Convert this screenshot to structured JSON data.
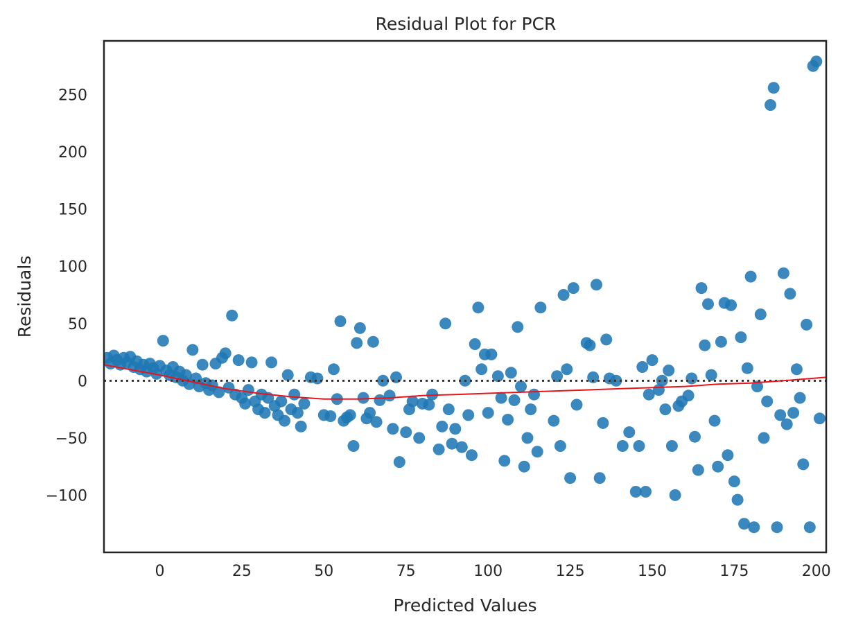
{
  "chart_data": {
    "type": "scatter",
    "title": "Residual Plot for PCR",
    "xlabel": "Predicted Values",
    "ylabel": "Residuals",
    "xlim": [
      -17,
      203
    ],
    "ylim": [
      -150,
      297
    ],
    "xticks": [
      0,
      25,
      50,
      75,
      100,
      125,
      150,
      175,
      200
    ],
    "yticks": [
      -100,
      -50,
      0,
      50,
      100,
      150,
      200,
      250
    ],
    "xtick_labels": [
      "0",
      "25",
      "50",
      "75",
      "100",
      "125",
      "150",
      "175",
      "200"
    ],
    "ytick_labels": [
      "−100",
      "−50",
      "0",
      "50",
      "100",
      "150",
      "200",
      "250"
    ],
    "grid": false,
    "point_color": "#1f77b4",
    "trend_color": "#e8141c",
    "reference_line": {
      "y": 0,
      "style": "dotted",
      "color": "#333333"
    },
    "series": [
      {
        "points": [
          [
            -16,
            20
          ],
          [
            -15,
            15
          ],
          [
            -14,
            22
          ],
          [
            -13,
            18
          ],
          [
            -12,
            14
          ],
          [
            -11,
            20
          ],
          [
            -10,
            16
          ],
          [
            -9,
            21
          ],
          [
            -8,
            12
          ],
          [
            -7,
            17
          ],
          [
            -6,
            10
          ],
          [
            -5,
            14
          ],
          [
            -4,
            8
          ],
          [
            -3,
            15
          ],
          [
            -2,
            11
          ],
          [
            -1,
            6
          ],
          [
            0,
            13
          ],
          [
            1,
            35
          ],
          [
            2,
            9
          ],
          [
            3,
            5
          ],
          [
            4,
            12
          ],
          [
            5,
            3
          ],
          [
            6,
            8
          ],
          [
            7,
            0
          ],
          [
            8,
            5
          ],
          [
            9,
            -3
          ],
          [
            10,
            27
          ],
          [
            11,
            2
          ],
          [
            12,
            -5
          ],
          [
            13,
            14
          ],
          [
            14,
            -2
          ],
          [
            15,
            -8
          ],
          [
            16,
            -4
          ],
          [
            17,
            15
          ],
          [
            18,
            -10
          ],
          [
            19,
            20
          ],
          [
            20,
            24
          ],
          [
            21,
            -6
          ],
          [
            22,
            57
          ],
          [
            23,
            -12
          ],
          [
            24,
            18
          ],
          [
            25,
            -15
          ],
          [
            26,
            -20
          ],
          [
            27,
            -8
          ],
          [
            28,
            16
          ],
          [
            29,
            -18
          ],
          [
            30,
            -25
          ],
          [
            31,
            -12
          ],
          [
            32,
            -28
          ],
          [
            33,
            -15
          ],
          [
            34,
            16
          ],
          [
            35,
            -22
          ],
          [
            36,
            -30
          ],
          [
            37,
            -18
          ],
          [
            38,
            -35
          ],
          [
            39,
            5
          ],
          [
            40,
            -25
          ],
          [
            41,
            -12
          ],
          [
            42,
            -28
          ],
          [
            43,
            -40
          ],
          [
            44,
            -20
          ],
          [
            46,
            3
          ],
          [
            48,
            2
          ],
          [
            50,
            -30
          ],
          [
            52,
            -31
          ],
          [
            53,
            10
          ],
          [
            54,
            -16
          ],
          [
            55,
            52
          ],
          [
            56,
            -35
          ],
          [
            57,
            -32
          ],
          [
            58,
            -30
          ],
          [
            59,
            -57
          ],
          [
            60,
            33
          ],
          [
            61,
            46
          ],
          [
            62,
            -15
          ],
          [
            63,
            -33
          ],
          [
            64,
            -28
          ],
          [
            65,
            34
          ],
          [
            66,
            -36
          ],
          [
            67,
            -17
          ],
          [
            68,
            0
          ],
          [
            70,
            -13
          ],
          [
            71,
            -42
          ],
          [
            72,
            3
          ],
          [
            73,
            -71
          ],
          [
            75,
            -45
          ],
          [
            76,
            -25
          ],
          [
            77,
            -18
          ],
          [
            79,
            -50
          ],
          [
            80,
            -20
          ],
          [
            82,
            -21
          ],
          [
            83,
            -12
          ],
          [
            85,
            -60
          ],
          [
            86,
            -40
          ],
          [
            87,
            50
          ],
          [
            88,
            -25
          ],
          [
            89,
            -55
          ],
          [
            90,
            -42
          ],
          [
            92,
            -58
          ],
          [
            93,
            0
          ],
          [
            94,
            -30
          ],
          [
            95,
            -65
          ],
          [
            96,
            32
          ],
          [
            97,
            64
          ],
          [
            98,
            10
          ],
          [
            99,
            23
          ],
          [
            100,
            -28
          ],
          [
            101,
            23
          ],
          [
            103,
            4
          ],
          [
            104,
            -15
          ],
          [
            105,
            -70
          ],
          [
            106,
            -34
          ],
          [
            107,
            7
          ],
          [
            108,
            -17
          ],
          [
            109,
            47
          ],
          [
            110,
            -5
          ],
          [
            111,
            -75
          ],
          [
            112,
            -50
          ],
          [
            113,
            -25
          ],
          [
            114,
            -12
          ],
          [
            115,
            -62
          ],
          [
            116,
            64
          ],
          [
            120,
            -35
          ],
          [
            121,
            4
          ],
          [
            122,
            -57
          ],
          [
            123,
            75
          ],
          [
            124,
            10
          ],
          [
            125,
            -85
          ],
          [
            126,
            81
          ],
          [
            127,
            -21
          ],
          [
            130,
            33
          ],
          [
            131,
            31
          ],
          [
            132,
            3
          ],
          [
            133,
            84
          ],
          [
            134,
            -85
          ],
          [
            135,
            -37
          ],
          [
            136,
            36
          ],
          [
            137,
            2
          ],
          [
            139,
            0
          ],
          [
            141,
            -57
          ],
          [
            143,
            -45
          ],
          [
            145,
            -97
          ],
          [
            146,
            -57
          ],
          [
            147,
            12
          ],
          [
            148,
            -97
          ],
          [
            149,
            -12
          ],
          [
            150,
            18
          ],
          [
            152,
            -8
          ],
          [
            153,
            0
          ],
          [
            154,
            -25
          ],
          [
            155,
            9
          ],
          [
            156,
            -57
          ],
          [
            157,
            -100
          ],
          [
            158,
            -22
          ],
          [
            159,
            -18
          ],
          [
            161,
            -13
          ],
          [
            162,
            2
          ],
          [
            163,
            -49
          ],
          [
            164,
            -78
          ],
          [
            165,
            81
          ],
          [
            166,
            31
          ],
          [
            167,
            67
          ],
          [
            168,
            5
          ],
          [
            169,
            -35
          ],
          [
            170,
            -75
          ],
          [
            171,
            34
          ],
          [
            172,
            68
          ],
          [
            173,
            -65
          ],
          [
            174,
            66
          ],
          [
            175,
            -88
          ],
          [
            176,
            -104
          ],
          [
            177,
            38
          ],
          [
            178,
            -125
          ],
          [
            179,
            11
          ],
          [
            180,
            91
          ],
          [
            181,
            -128
          ],
          [
            182,
            -5
          ],
          [
            183,
            58
          ],
          [
            184,
            -50
          ],
          [
            185,
            -18
          ],
          [
            186,
            241
          ],
          [
            187,
            256
          ],
          [
            188,
            -128
          ],
          [
            189,
            -30
          ],
          [
            190,
            94
          ],
          [
            191,
            -38
          ],
          [
            192,
            76
          ],
          [
            193,
            -28
          ],
          [
            194,
            10
          ],
          [
            195,
            -15
          ],
          [
            196,
            -73
          ],
          [
            197,
            49
          ],
          [
            198,
            -128
          ],
          [
            199,
            275
          ],
          [
            200,
            279
          ],
          [
            201,
            -33
          ]
        ]
      }
    ],
    "trend": [
      [
        -17,
        14
      ],
      [
        0,
        5
      ],
      [
        10,
        -1
      ],
      [
        20,
        -7
      ],
      [
        30,
        -11
      ],
      [
        40,
        -14
      ],
      [
        50,
        -16
      ],
      [
        60,
        -16
      ],
      [
        70,
        -15
      ],
      [
        80,
        -13
      ],
      [
        90,
        -12
      ],
      [
        100,
        -11
      ],
      [
        110,
        -10
      ],
      [
        120,
        -9
      ],
      [
        130,
        -8
      ],
      [
        140,
        -7
      ],
      [
        150,
        -6
      ],
      [
        160,
        -5
      ],
      [
        170,
        -3
      ],
      [
        180,
        -2
      ],
      [
        190,
        0
      ],
      [
        203,
        3
      ]
    ]
  }
}
